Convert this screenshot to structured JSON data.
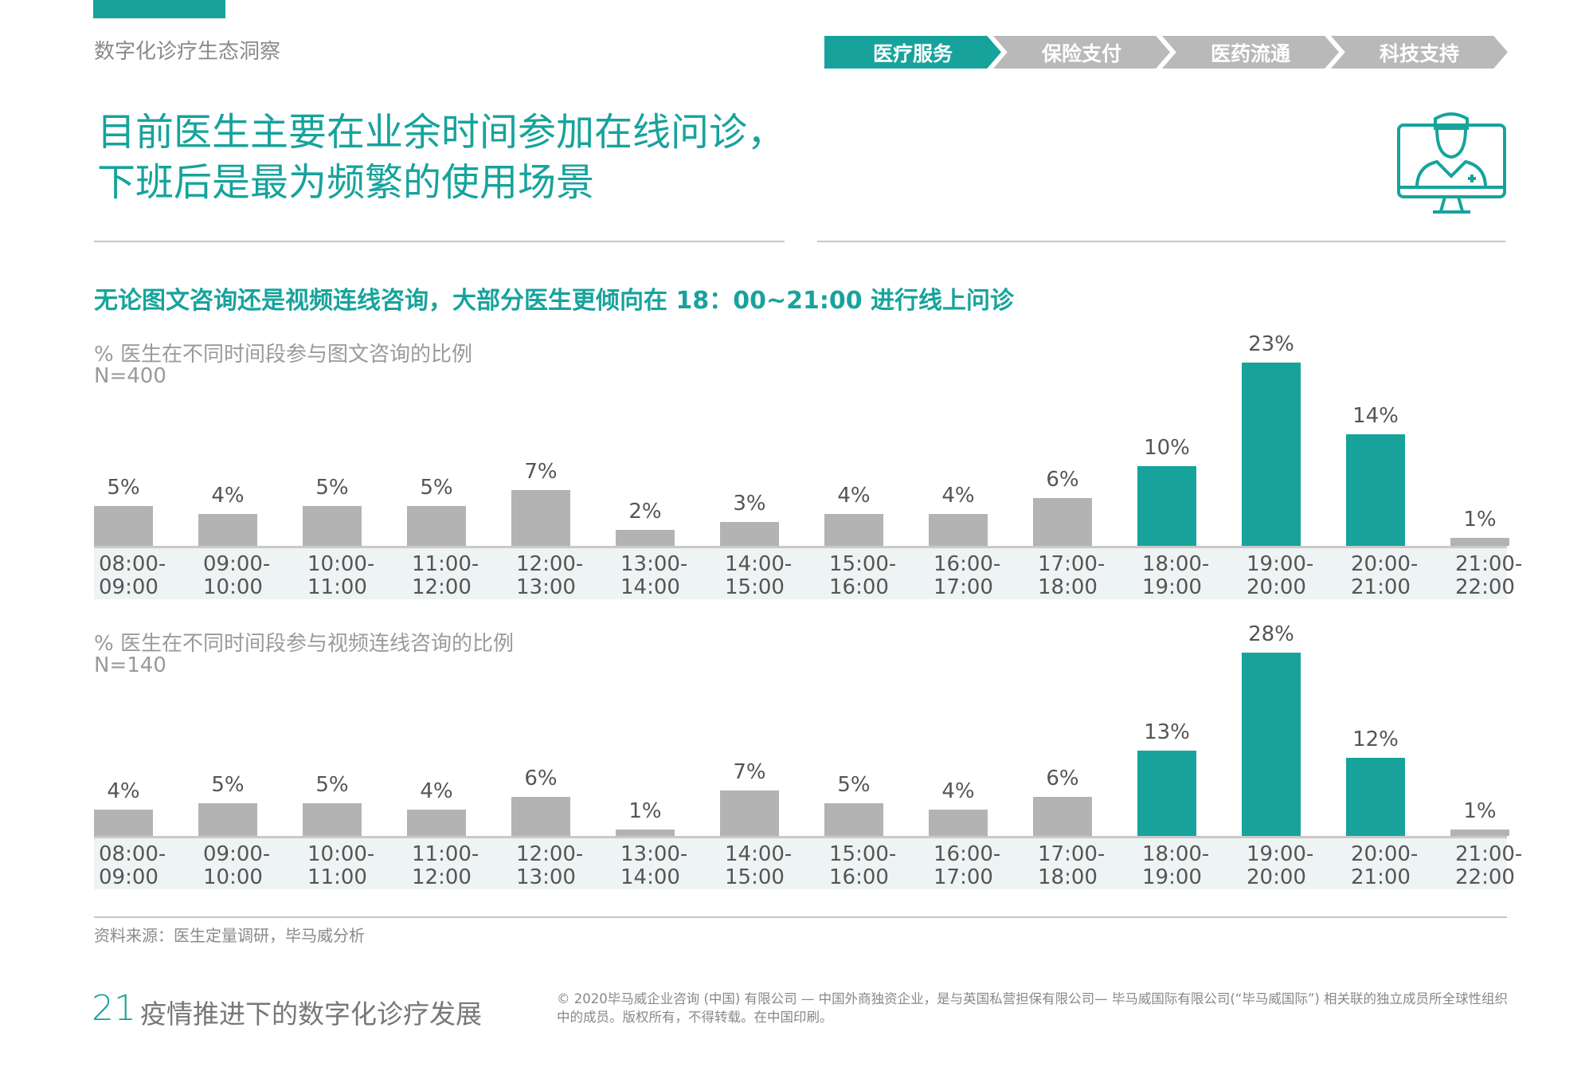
{
  "header": {
    "section": "数字化诊疗生态洞察",
    "tabs": [
      {
        "label": "医疗服务",
        "active": true
      },
      {
        "label": "保险支付",
        "active": false
      },
      {
        "label": "医药流通",
        "active": false
      },
      {
        "label": "科技支持",
        "active": false
      }
    ]
  },
  "title": {
    "line1": "目前医生主要在业余时间参加在线问诊，",
    "line2": "下班后是最为频繁的使用场景"
  },
  "icon": "doctor-monitor-icon",
  "subtitle": "无论图文咨询还是视频连线咨询，大部分医生更倾向在 18：00~21:00 进行线上问诊",
  "colors": {
    "accent": "#17a39c",
    "bar": "#b3b3b3"
  },
  "chart_data": [
    {
      "type": "bar",
      "title": "% 医生在不同时间段参与图文咨询的比例",
      "note": "N=400",
      "categories": [
        [
          "08:00-",
          "09:00"
        ],
        [
          "09:00-",
          "10:00"
        ],
        [
          "10:00-",
          "11:00"
        ],
        [
          "11:00-",
          "12:00"
        ],
        [
          "12:00-",
          "13:00"
        ],
        [
          "13:00-",
          "14:00"
        ],
        [
          "14:00-",
          "15:00"
        ],
        [
          "15:00-",
          "16:00"
        ],
        [
          "16:00-",
          "17:00"
        ],
        [
          "17:00-",
          "18:00"
        ],
        [
          "18:00-",
          "19:00"
        ],
        [
          "19:00-",
          "20:00"
        ],
        [
          "20:00-",
          "21:00"
        ],
        [
          "21:00-",
          "22:00"
        ]
      ],
      "values": [
        5,
        4,
        5,
        5,
        7,
        2,
        3,
        4,
        4,
        6,
        10,
        23,
        14,
        1
      ],
      "labels": [
        "5%",
        "4%",
        "5%",
        "5%",
        "7%",
        "2%",
        "3%",
        "4%",
        "4%",
        "6%",
        "10%",
        "23%",
        "14%",
        "1%"
      ],
      "highlight": [
        10,
        11,
        12
      ],
      "unit": "%"
    },
    {
      "type": "bar",
      "title": "% 医生在不同时间段参与视频连线咨询的比例",
      "note": "N=140",
      "categories": [
        [
          "08:00-",
          "09:00"
        ],
        [
          "09:00-",
          "10:00"
        ],
        [
          "10:00-",
          "11:00"
        ],
        [
          "11:00-",
          "12:00"
        ],
        [
          "12:00-",
          "13:00"
        ],
        [
          "13:00-",
          "14:00"
        ],
        [
          "14:00-",
          "15:00"
        ],
        [
          "15:00-",
          "16:00"
        ],
        [
          "16:00-",
          "17:00"
        ],
        [
          "17:00-",
          "18:00"
        ],
        [
          "18:00-",
          "19:00"
        ],
        [
          "19:00-",
          "20:00"
        ],
        [
          "20:00-",
          "21:00"
        ],
        [
          "21:00-",
          "22:00"
        ]
      ],
      "values": [
        4,
        5,
        5,
        4,
        6,
        1,
        7,
        5,
        4,
        6,
        13,
        28,
        12,
        1
      ],
      "labels": [
        "4%",
        "5%",
        "5%",
        "4%",
        "6%",
        "1%",
        "7%",
        "5%",
        "4%",
        "6%",
        "13%",
        "28%",
        "12%",
        "1%"
      ],
      "highlight": [
        10,
        11,
        12
      ],
      "unit": "%"
    }
  ],
  "footer": {
    "source": "资料来源：医生定量调研，毕马威分析",
    "page_number": "21",
    "doc_title": "疫情推进下的数字化诊疗发展",
    "copyright": "© 2020毕马威企业咨询 (中国) 有限公司 — 中国外商独资企业，是与英国私营担保有限公司— 毕马威国际有限公司(“毕马威国际”) 相关联的独立成员所全球性组织中的成员。版权所有，不得转载。在中国印刷。"
  }
}
